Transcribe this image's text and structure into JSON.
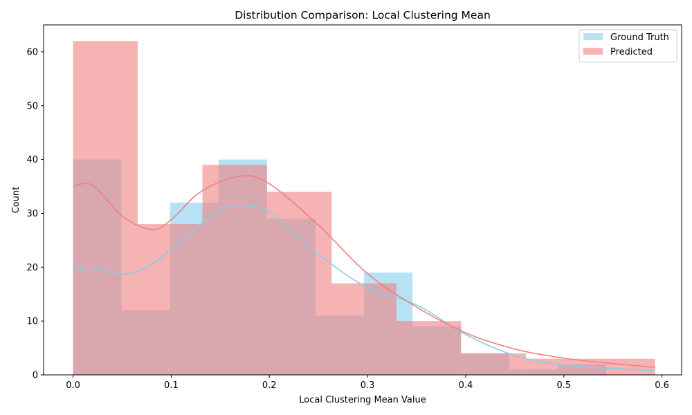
{
  "chart_data": {
    "type": "bar",
    "title": "Distribution Comparison: Local Clustering Mean",
    "xlabel": "Local Clustering Mean Value",
    "ylabel": "Count",
    "xlim": [
      -0.03,
      0.62
    ],
    "ylim": [
      0,
      65
    ],
    "x_ticks": [
      0.0,
      0.1,
      0.2,
      0.3,
      0.4,
      0.5,
      0.6
    ],
    "x_tick_labels": [
      "0.0",
      "0.1",
      "0.2",
      "0.3",
      "0.4",
      "0.5",
      "0.6"
    ],
    "y_ticks": [
      0,
      10,
      20,
      30,
      40,
      50,
      60
    ],
    "y_tick_labels": [
      "0",
      "10",
      "20",
      "30",
      "40",
      "50",
      "60"
    ],
    "grid": false,
    "legend_position": "top-right",
    "series": [
      {
        "name": "Ground Truth",
        "color": "#87ceeb",
        "bin_edges": [
          0.0,
          0.0494,
          0.0988,
          0.1482,
          0.1976,
          0.247,
          0.2964,
          0.3458,
          0.3952,
          0.4446,
          0.494,
          0.5434,
          0.5928
        ],
        "counts": [
          40,
          12,
          32,
          40,
          29,
          11,
          19,
          9,
          4,
          1,
          2,
          0
        ],
        "kde": [
          [
            0.0,
            19.4
          ],
          [
            0.02,
            19.9
          ],
          [
            0.05,
            18.7
          ],
          [
            0.08,
            20.5
          ],
          [
            0.12,
            26.5
          ],
          [
            0.15,
            30.5
          ],
          [
            0.17,
            31.4
          ],
          [
            0.2,
            30.2
          ],
          [
            0.25,
            22.4
          ],
          [
            0.3,
            16.2
          ],
          [
            0.35,
            13.0
          ],
          [
            0.4,
            7.5
          ],
          [
            0.45,
            3.6
          ],
          [
            0.5,
            1.8
          ],
          [
            0.55,
            1.2
          ],
          [
            0.593,
            0.8
          ]
        ]
      },
      {
        "name": "Predicted",
        "color": "#f08080",
        "bin_edges": [
          0.0,
          0.0659,
          0.1318,
          0.1976,
          0.2635,
          0.3294,
          0.3953,
          0.4612,
          0.527,
          0.5929
        ],
        "counts": [
          62,
          28,
          39,
          34,
          17,
          10,
          4,
          3,
          3
        ],
        "kde": [
          [
            0.0,
            35.0
          ],
          [
            0.02,
            35.2
          ],
          [
            0.05,
            29.5
          ],
          [
            0.08,
            27.0
          ],
          [
            0.1,
            28.8
          ],
          [
            0.13,
            34.0
          ],
          [
            0.17,
            36.9
          ],
          [
            0.2,
            35.5
          ],
          [
            0.25,
            27.8
          ],
          [
            0.3,
            18.8
          ],
          [
            0.35,
            12.6
          ],
          [
            0.4,
            7.8
          ],
          [
            0.45,
            4.8
          ],
          [
            0.5,
            3.1
          ],
          [
            0.55,
            2.1
          ],
          [
            0.593,
            1.4
          ]
        ]
      }
    ]
  }
}
